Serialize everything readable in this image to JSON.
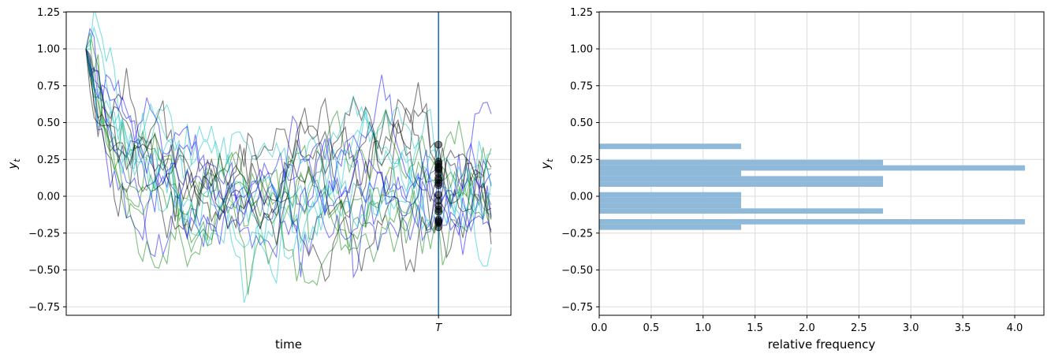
{
  "chart_data": [
    {
      "type": "line",
      "xlabel": "time",
      "ylabel": "y_t",
      "ylim": [
        -0.8,
        1.25
      ],
      "yticks": [
        1.25,
        1.0,
        0.75,
        0.5,
        0.25,
        0.0,
        -0.25,
        -0.5,
        -0.75
      ],
      "ytick_labels": [
        "1.25",
        "1.00",
        "0.75",
        "0.50",
        "0.25",
        "0.00",
        "−0.25",
        "−0.50",
        "−0.75"
      ],
      "xtick_labels": [
        "T"
      ],
      "grid": true,
      "initial_value": 1.0,
      "series_colors": [
        "#0000ff",
        "#008000",
        "#00bfbf",
        "#000000"
      ],
      "vertical_line_color": "#1f77b4",
      "marker_color": "#000000",
      "values_at_T": [
        -0.21,
        -0.18,
        -0.17,
        -0.16,
        -0.105,
        -0.09,
        -0.065,
        -0.03,
        0.01,
        0.075,
        0.09,
        0.11,
        0.125,
        0.155,
        0.18,
        0.19,
        0.2,
        0.22,
        0.235,
        0.35
      ]
    },
    {
      "type": "bar",
      "orientation": "horizontal",
      "xlabel": "relative frequency",
      "ylabel": "y_t",
      "xlim": [
        0,
        4.28
      ],
      "ylim": [
        -0.8,
        1.25
      ],
      "xticks": [
        0.0,
        0.5,
        1.0,
        1.5,
        2.0,
        2.5,
        3.0,
        3.5,
        4.0
      ],
      "xtick_labels": [
        "0.0",
        "0.5",
        "1.0",
        "1.5",
        "2.0",
        "2.5",
        "3.0",
        "3.5",
        "4.0"
      ],
      "yticks": [
        1.25,
        1.0,
        0.75,
        0.5,
        0.25,
        0.0,
        -0.25,
        -0.5,
        -0.75
      ],
      "ytick_labels": [
        "1.25",
        "1.00",
        "0.75",
        "0.50",
        "0.25",
        "0.00",
        "−0.25",
        "−0.50",
        "−0.75"
      ],
      "grid": true,
      "bar_color": "#8fb9d9",
      "bin_edges": [
        -0.228,
        -0.191,
        -0.155,
        -0.118,
        -0.082,
        -0.045,
        -0.009,
        0.028,
        0.064,
        0.101,
        0.137,
        0.174,
        0.21,
        0.247,
        0.284,
        0.32,
        0.357
      ],
      "densities": [
        1.366,
        4.098,
        0,
        2.732,
        1.366,
        1.366,
        1.366,
        0,
        2.732,
        2.732,
        1.366,
        4.098,
        2.732,
        0,
        0,
        1.366
      ]
    }
  ]
}
